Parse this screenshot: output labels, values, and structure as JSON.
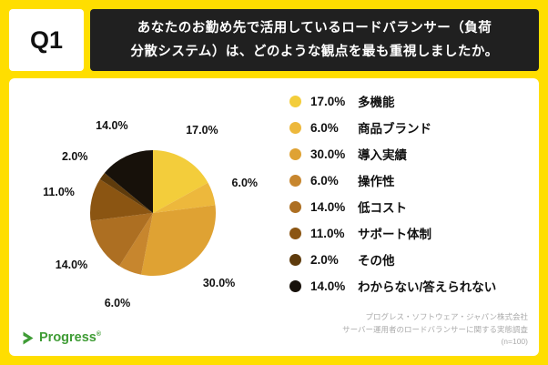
{
  "header": {
    "q_label": "Q1",
    "question_lines": [
      "あなたのお勤め先で活用しているロードバランサー（負荷",
      "分散システム）は、どのような観点を最も重視しましたか。"
    ]
  },
  "chart_data": {
    "type": "pie",
    "categories": [
      "多機能",
      "商品ブランド",
      "導入実績",
      "操作性",
      "低コスト",
      "サポート体制",
      "その他",
      "わからない/答えられない"
    ],
    "values": [
      17.0,
      6.0,
      30.0,
      6.0,
      14.0,
      11.0,
      2.0,
      14.0
    ],
    "labels": [
      "17.0%",
      "6.0%",
      "30.0%",
      "6.0%",
      "14.0%",
      "11.0%",
      "2.0%",
      "14.0%"
    ],
    "colors": [
      "#F3CD3B",
      "#EDB83C",
      "#DFA233",
      "#C7862E",
      "#AD6F22",
      "#8B5512",
      "#5E3B0C",
      "#17110A"
    ],
    "start_angle_deg": 0,
    "direction": "clockwise",
    "legend_position": "right",
    "title": ""
  },
  "footer": {
    "logo_text": "Progress",
    "logo_mark": "®",
    "credit_lines": [
      "プログレス・ソフトウェア・ジャパン株式会社",
      "サーバー運用者のロードバランサーに関する実態調査",
      "(n=100)"
    ]
  },
  "colors": {
    "background": "#FFDE00",
    "question_box": "#202020",
    "card": "#FFFFFF",
    "progress_green": "#3F9C35"
  }
}
